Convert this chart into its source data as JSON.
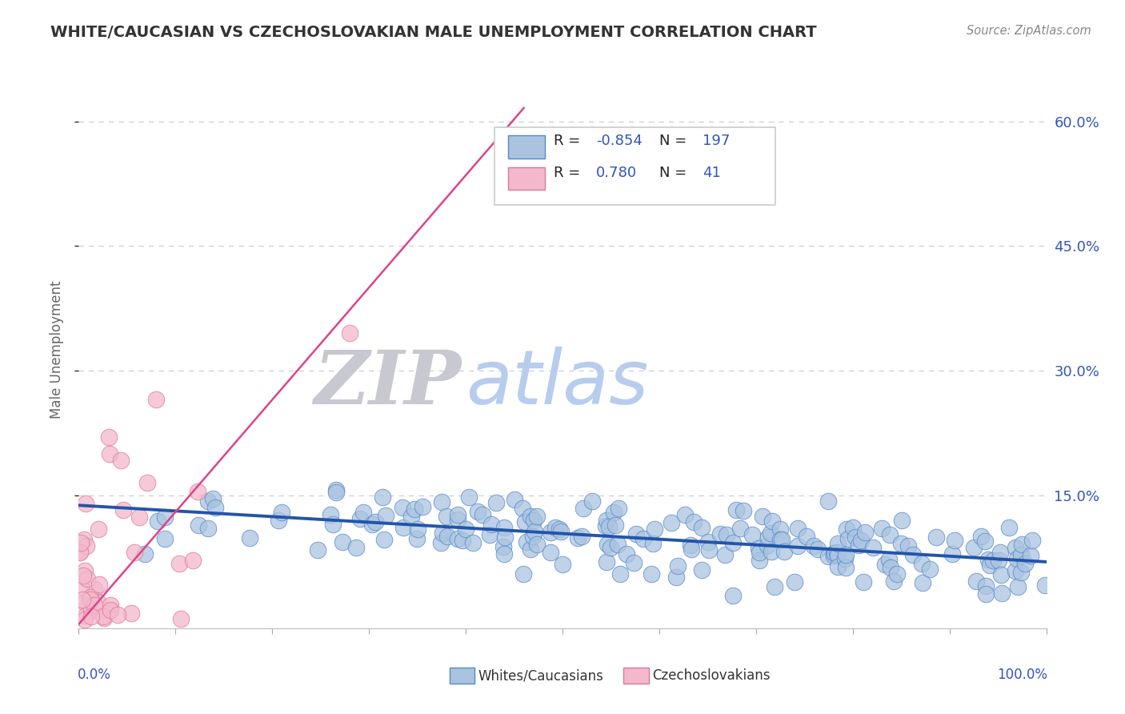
{
  "title": "WHITE/CAUCASIAN VS CZECHOSLOVAKIAN MALE UNEMPLOYMENT CORRELATION CHART",
  "source_text": "Source: ZipAtlas.com",
  "ylabel": "Male Unemployment",
  "blue_r": -0.854,
  "blue_n": 197,
  "pink_r": 0.78,
  "pink_n": 41,
  "blue_color": "#aac4e0",
  "blue_edge_color": "#5588cc",
  "blue_line_color": "#2255aa",
  "pink_color": "#f4b8cc",
  "pink_edge_color": "#dd7799",
  "pink_line_color": "#dd4488",
  "background_color": "#ffffff",
  "grid_color": "#ccccdd",
  "title_color": "#333333",
  "source_color": "#888888",
  "legend_color": "#3355bb",
  "watermark_zip_color": "#c8c8d0",
  "watermark_atlas_color": "#b8ccee",
  "blue_line_intercept": 0.138,
  "blue_line_slope": -0.068,
  "pink_line_intercept": -0.005,
  "pink_line_slope": 1.35
}
